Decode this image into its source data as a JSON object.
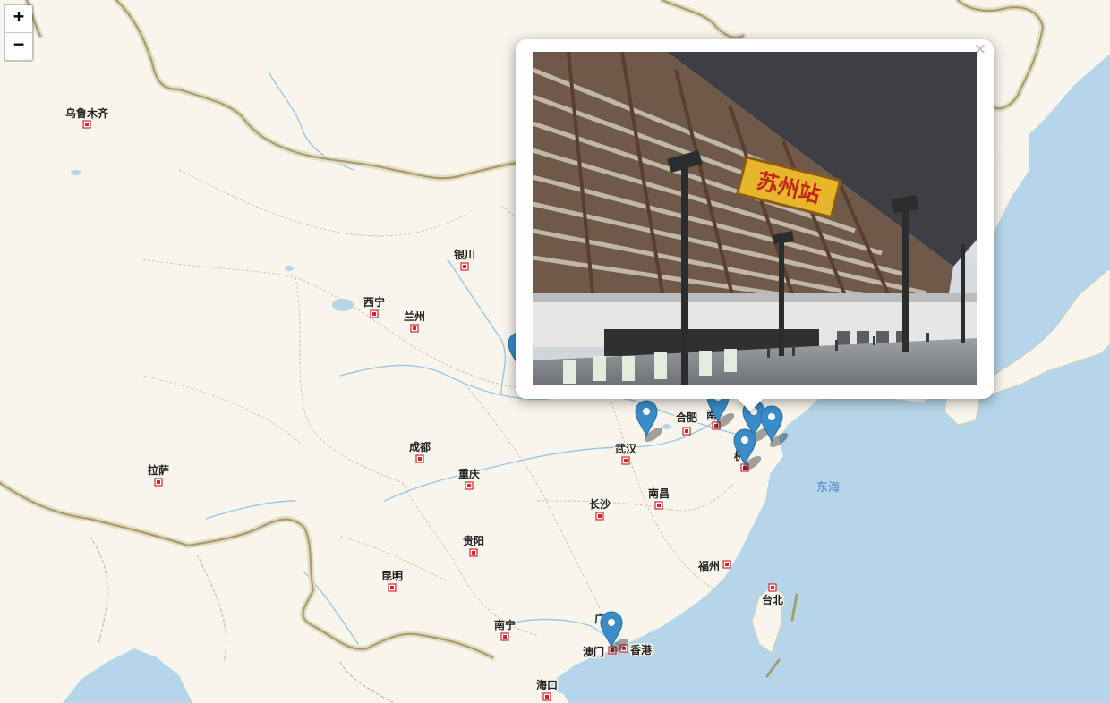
{
  "map": {
    "sea_label": "东海",
    "cities": [
      {
        "name": "乌鲁木齐"
      },
      {
        "name": "银川"
      },
      {
        "name": "西宁"
      },
      {
        "name": "兰州"
      },
      {
        "name": "拉萨"
      },
      {
        "name": "成都"
      },
      {
        "name": "重庆"
      },
      {
        "name": "武汉"
      },
      {
        "name": "合肥"
      },
      {
        "name": "南"
      },
      {
        "name": "杭"
      },
      {
        "name": "长沙"
      },
      {
        "name": "南昌"
      },
      {
        "name": "贵阳"
      },
      {
        "name": "福州"
      },
      {
        "name": "台北"
      },
      {
        "name": "昆明"
      },
      {
        "name": "南宁"
      },
      {
        "name": "广州"
      },
      {
        "name": "澳门"
      },
      {
        "name": "香港"
      },
      {
        "name": "海口"
      }
    ],
    "markers": [
      {
        "name": "marker-west"
      },
      {
        "name": "marker-wuhan-north"
      },
      {
        "name": "marker-nanjing"
      },
      {
        "name": "marker-suzhou"
      },
      {
        "name": "marker-shanghai"
      },
      {
        "name": "marker-hangzhou"
      },
      {
        "name": "marker-guangzhou"
      }
    ]
  },
  "zoom": {
    "in_label": "+",
    "out_label": "−"
  },
  "popup": {
    "close_label": "×",
    "photo_sign_text": "苏州站"
  },
  "colors": {
    "land": "#f8f5ec",
    "water": "#b5d6ea",
    "border": "#a89c6e",
    "marker": "#3a8cc9",
    "city_dot": "#d8262f"
  }
}
